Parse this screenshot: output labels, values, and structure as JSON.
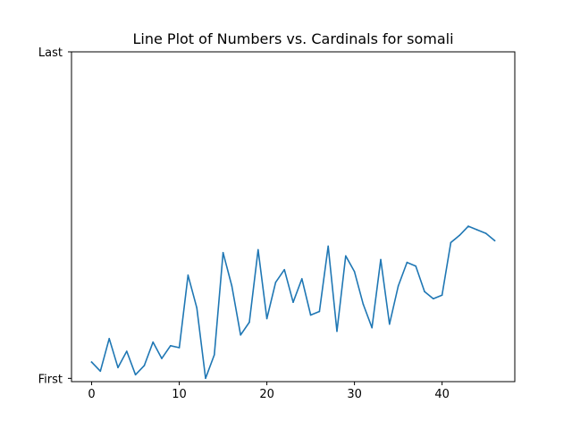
{
  "chart_data": {
    "type": "line",
    "title": "Line Plot of Numbers vs. Cardinals for somali",
    "xlabel": "",
    "ylabel": "",
    "xlim": [
      -2.3,
      48.3
    ],
    "ylim": [
      -0.01,
      1.0
    ],
    "x_ticks": [
      0,
      10,
      20,
      30,
      40
    ],
    "x_tick_labels": [
      "0",
      "10",
      "20",
      "30",
      "40"
    ],
    "y_ticks": [
      0,
      1
    ],
    "y_tick_labels": [
      "First",
      "Last"
    ],
    "grid": false,
    "legend": "none",
    "series": [
      {
        "color": "#1f77b4",
        "x": [
          0,
          1,
          2,
          3,
          4,
          5,
          6,
          7,
          8,
          9,
          10,
          11,
          12,
          13,
          14,
          15,
          16,
          17,
          18,
          19,
          20,
          21,
          22,
          23,
          24,
          25,
          26,
          27,
          28,
          29,
          30,
          31,
          32,
          33,
          34,
          35,
          36,
          37,
          38,
          39,
          40,
          41,
          42,
          43,
          44,
          45,
          46
        ],
        "y": [
          0.05,
          0.022,
          0.122,
          0.033,
          0.083,
          0.011,
          0.039,
          0.111,
          0.061,
          0.1,
          0.094,
          0.316,
          0.216,
          0.0,
          0.072,
          0.385,
          0.283,
          0.133,
          0.172,
          0.394,
          0.183,
          0.294,
          0.333,
          0.233,
          0.305,
          0.194,
          0.205,
          0.405,
          0.144,
          0.375,
          0.327,
          0.227,
          0.155,
          0.364,
          0.166,
          0.283,
          0.355,
          0.344,
          0.266,
          0.244,
          0.255,
          0.416,
          0.438,
          0.466,
          0.455,
          0.444,
          0.422
        ]
      }
    ]
  }
}
